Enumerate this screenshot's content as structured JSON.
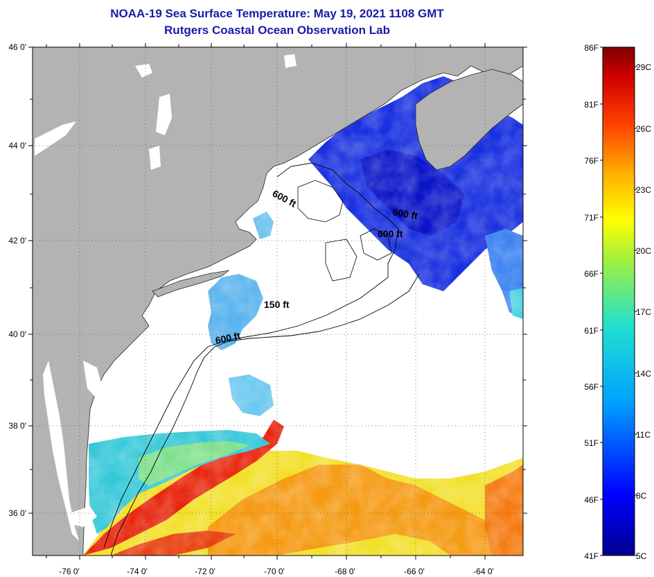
{
  "title": "NOAA-19 Sea Surface Temperature:  May 19, 2021 1108 GMT",
  "subtitle": "Rutgers Coastal Ocean Observation Lab",
  "lat_labels": [
    "46 0'",
    "44 0'",
    "42 0'",
    "40 0'",
    "38 0'",
    "36 0'"
  ],
  "lon_labels": [
    "-76 0'",
    "-74 0'",
    "-72 0'",
    "-70 0'",
    "-68 0'",
    "-66 0'",
    "-64 0'"
  ],
  "depth_labels": [
    "600 ft",
    "600 ft",
    "600 ft",
    "150 ft",
    "600 ft"
  ],
  "colorbar": {
    "fahrenheit": [
      "86F",
      "81F",
      "76F",
      "71F",
      "66F",
      "61F",
      "56F",
      "51F",
      "46F",
      "41F"
    ],
    "celsius": [
      "29C",
      "26C",
      "23C",
      "20C",
      "17C",
      "14C",
      "11C",
      "8C",
      "5C"
    ]
  },
  "colors": {
    "land": "#b3b3b3",
    "cloud": "#ffffff",
    "title": "#1a1aa8"
  }
}
